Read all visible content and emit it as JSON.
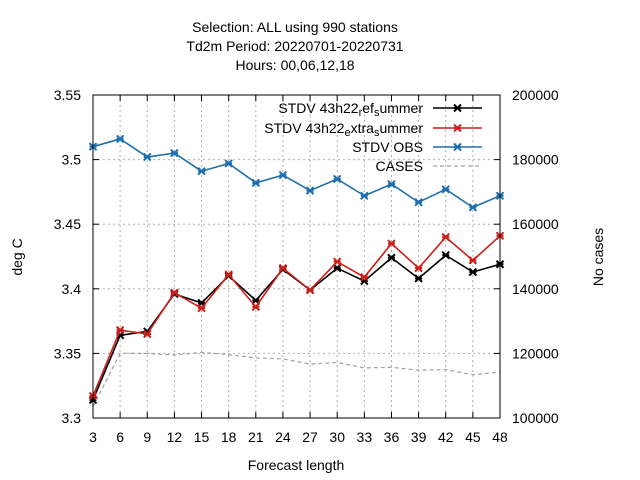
{
  "chart_data": {
    "type": "line",
    "title_lines": [
      "Selection: ALL using   990 stations",
      "Td2m   Period: 20220701-20220731",
      "Hours:  00,06,12,18"
    ],
    "xlabel": "Forecast length",
    "ylabel": "deg C",
    "y2label": "No cases",
    "x": [
      3,
      6,
      9,
      12,
      15,
      18,
      21,
      24,
      27,
      30,
      33,
      36,
      39,
      42,
      45,
      48
    ],
    "xlim": [
      3,
      48
    ],
    "ylim": [
      3.3,
      3.55
    ],
    "y2lim": [
      100000,
      200000
    ],
    "yticks": [
      "3.3",
      "3.35",
      "3.4",
      "3.45",
      "3.5",
      "3.55"
    ],
    "y2ticks": [
      "100000",
      "120000",
      "140000",
      "160000",
      "180000",
      "200000"
    ],
    "grid": true,
    "legend_position": "top-right",
    "series": [
      {
        "legend_parts": [
          {
            "text": "STDV 43h22",
            "sub": false
          },
          {
            "text": "r",
            "sub": true
          },
          {
            "text": "ef",
            "sub": false
          },
          {
            "text": "s",
            "sub": true
          },
          {
            "text": "ummer",
            "sub": false
          }
        ],
        "color": "#000000",
        "style": "solid",
        "marker": "x",
        "axis": "y",
        "values": [
          3.314,
          3.364,
          3.367,
          3.396,
          3.389,
          3.41,
          3.391,
          3.415,
          3.399,
          3.416,
          3.406,
          3.424,
          3.408,
          3.426,
          3.413,
          3.419
        ]
      },
      {
        "legend_parts": [
          {
            "text": "STDV 43h22",
            "sub": false
          },
          {
            "text": "e",
            "sub": true
          },
          {
            "text": "xtra",
            "sub": false
          },
          {
            "text": "s",
            "sub": true
          },
          {
            "text": "ummer",
            "sub": false
          }
        ],
        "color": "#cc1f1a",
        "style": "solid",
        "marker": "x",
        "axis": "y",
        "values": [
          3.317,
          3.368,
          3.365,
          3.397,
          3.385,
          3.411,
          3.386,
          3.416,
          3.399,
          3.421,
          3.409,
          3.435,
          3.416,
          3.44,
          3.422,
          3.441
        ]
      },
      {
        "legend_parts": [
          {
            "text": "STDV OBS",
            "sub": false
          }
        ],
        "color": "#1f6fae",
        "style": "solid",
        "marker": "x",
        "axis": "y",
        "values": [
          3.51,
          3.516,
          3.502,
          3.505,
          3.491,
          3.497,
          3.482,
          3.488,
          3.476,
          3.485,
          3.472,
          3.481,
          3.467,
          3.477,
          3.463,
          3.472
        ]
      },
      {
        "legend_parts": [
          {
            "text": "CASES",
            "sub": false
          }
        ],
        "color": "#a0a0a0",
        "style": "dashed",
        "marker": "none",
        "axis": "y2",
        "values": [
          103500,
          120000,
          120000,
          119500,
          120300,
          119600,
          118600,
          118300,
          116700,
          117200,
          115500,
          115700,
          114800,
          115000,
          113400,
          114200
        ]
      }
    ]
  }
}
